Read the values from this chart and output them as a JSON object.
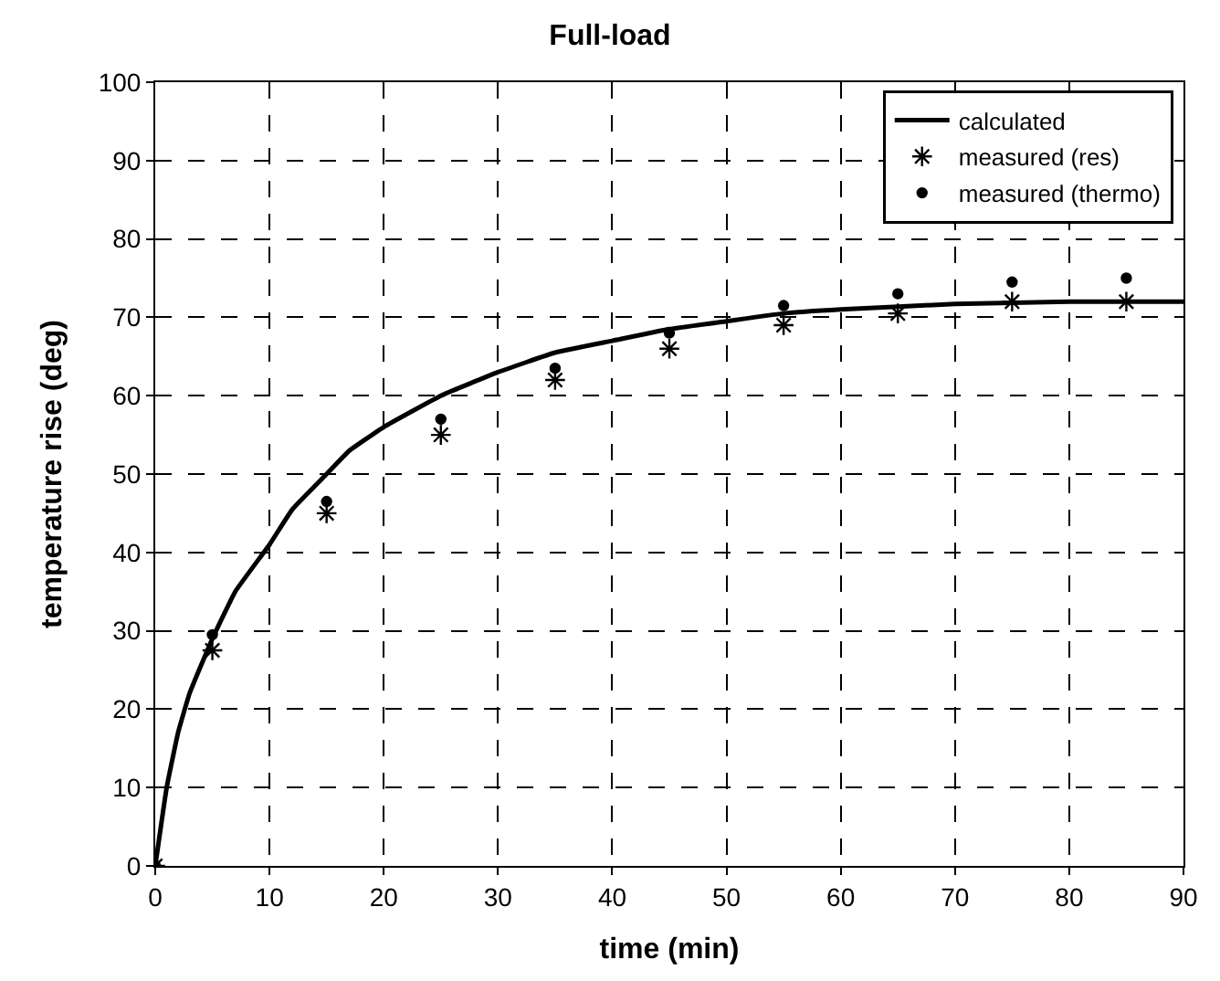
{
  "chart_data": {
    "type": "scatter",
    "title": "Full-load",
    "xlabel": "time (min)",
    "ylabel": "temperature rise (deg)",
    "xlim": [
      0,
      90
    ],
    "xticks": [
      0,
      10,
      20,
      30,
      40,
      50,
      60,
      70,
      80,
      90
    ],
    "ylim": [
      0,
      100
    ],
    "yticks": [
      0,
      10,
      20,
      30,
      40,
      50,
      60,
      70,
      80,
      90,
      100
    ],
    "grid": true,
    "legend": "top right",
    "series": [
      {
        "name": "calculated",
        "type": "line",
        "color": "#000000",
        "marker": "none",
        "line_style": "solid",
        "x": [
          0,
          1,
          2,
          3,
          5,
          7,
          10,
          12,
          15,
          17,
          20,
          25,
          30,
          35,
          40,
          45,
          50,
          55,
          60,
          70,
          80,
          90
        ],
        "values": [
          0,
          10,
          17,
          22,
          29,
          35,
          41,
          45.5,
          50,
          53,
          56,
          60,
          63,
          65.5,
          67,
          68.5,
          69.5,
          70.5,
          71,
          71.7,
          72,
          72
        ]
      },
      {
        "name": "measured (res)",
        "color": "#000000",
        "marker": "cross",
        "x": [
          0,
          5,
          15,
          25,
          35,
          45,
          55,
          65,
          75,
          85
        ],
        "values": [
          0,
          27.5,
          45,
          55,
          62,
          66,
          69,
          70.5,
          72,
          72
        ]
      },
      {
        "name": "measured (thermo)",
        "color": "#000000",
        "marker": "circle",
        "x": [
          0,
          5,
          15,
          25,
          35,
          45,
          55,
          65,
          75,
          85
        ],
        "values": [
          0,
          29.5,
          46.5,
          57,
          63.5,
          68,
          71.5,
          73,
          74.5,
          75
        ]
      }
    ]
  }
}
